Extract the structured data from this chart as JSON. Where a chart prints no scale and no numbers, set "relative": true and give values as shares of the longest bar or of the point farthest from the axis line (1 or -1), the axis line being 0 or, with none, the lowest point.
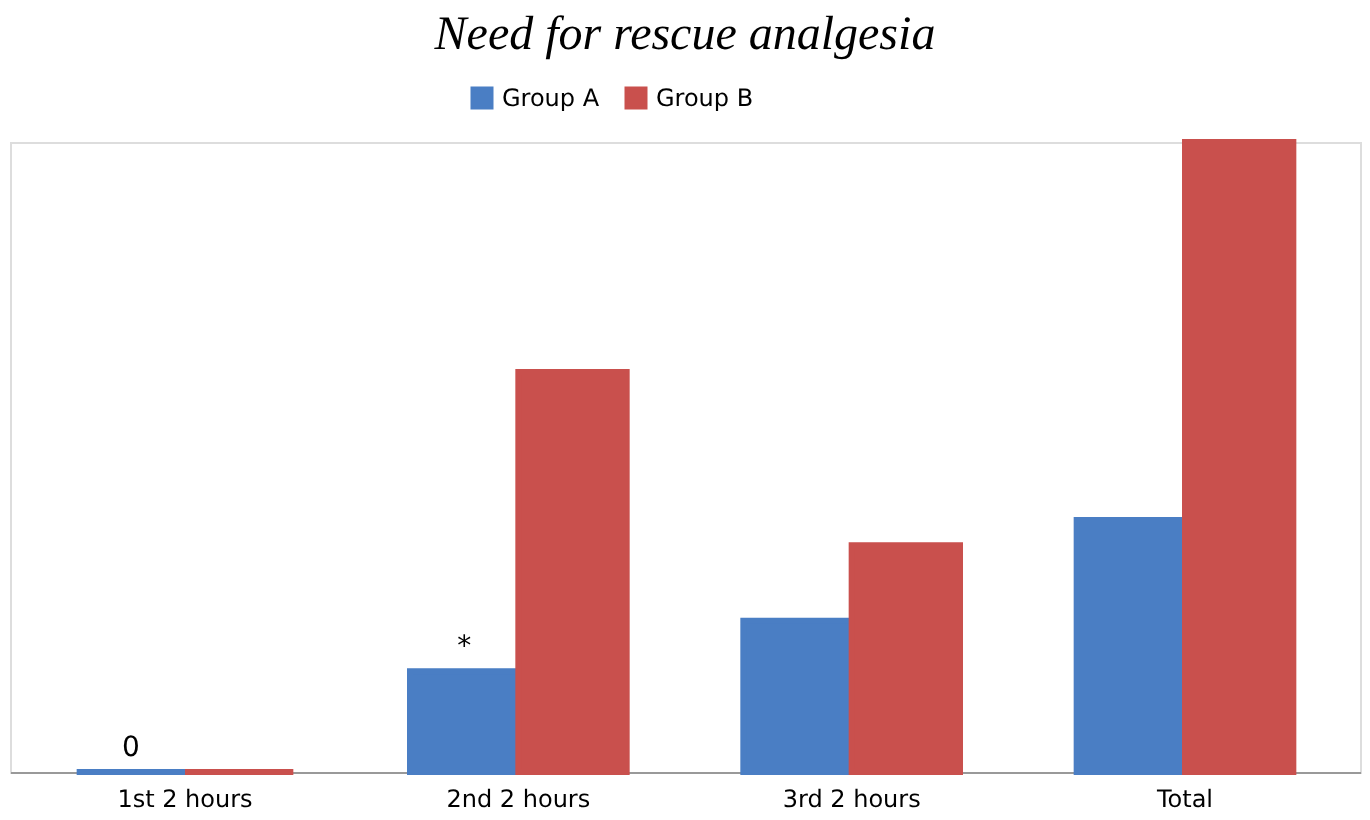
{
  "chart_data": {
    "type": "bar",
    "title": "Need for rescue analgesia",
    "relative": true,
    "categories": [
      "1st 2 hours",
      "2nd 2 hours",
      "3rd 2 hours",
      "Total"
    ],
    "series": [
      {
        "name": "Group A",
        "color": "#4a7ec4",
        "values": [
          0,
          0.16,
          0.24,
          0.4
        ]
      },
      {
        "name": "Group B",
        "color": "#c9504d",
        "values": [
          0,
          0.635,
          0.36,
          1
        ]
      }
    ],
    "annotations": [
      {
        "text": "0",
        "x": "1st 2 hours",
        "y": 0
      },
      {
        "text": "*",
        "x": "2nd 2 hours",
        "y": 0.16
      }
    ],
    "legend": "top",
    "grid": false
  }
}
